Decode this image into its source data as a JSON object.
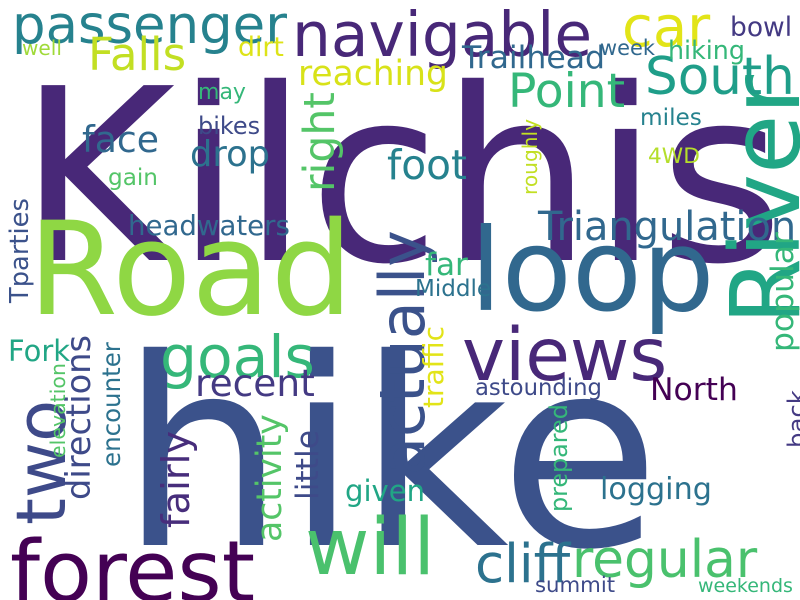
{
  "background": "#ffffff",
  "palette": {
    "dark_purple": "#440154",
    "indigo": "#482878",
    "slate_blue": "#3e4a89",
    "steel_blue": "#31688e",
    "teal_blue": "#26828e",
    "teal": "#1f9e89",
    "sea_green": "#35b779",
    "green": "#6ece58",
    "lime": "#b5de2b",
    "yellow": "#fde725"
  },
  "words": [
    {
      "text": "Kilchis",
      "color": "#482878"
    },
    {
      "text": "hike",
      "color": "#3b528b"
    },
    {
      "text": "Road",
      "color": "#8fd744"
    },
    {
      "text": "loop",
      "color": "#31688e"
    },
    {
      "text": "views",
      "color": "#482878"
    },
    {
      "text": "River",
      "color": "#21a685"
    },
    {
      "text": "forest",
      "color": "#440154"
    },
    {
      "text": "will",
      "color": "#4ac16d"
    },
    {
      "text": "regular",
      "color": "#4ac16d"
    },
    {
      "text": "actually",
      "color": "#3b528b"
    },
    {
      "text": "navigable",
      "color": "#482878"
    },
    {
      "text": "passenger",
      "color": "#26828e"
    },
    {
      "text": "South",
      "color": "#1f9e89"
    },
    {
      "text": "car",
      "color": "#e2e418"
    },
    {
      "text": "goals",
      "color": "#35b779"
    },
    {
      "text": "two",
      "color": "#3e4a89"
    },
    {
      "text": "Triangulation",
      "color": "#31688e"
    },
    {
      "text": "reaching",
      "color": "#d8e219"
    },
    {
      "text": "Falls",
      "color": "#c2df23"
    },
    {
      "text": "Point",
      "color": "#35b779"
    },
    {
      "text": "foot",
      "color": "#26828e"
    },
    {
      "text": "drop",
      "color": "#2c728e"
    },
    {
      "text": "face",
      "color": "#31688e"
    },
    {
      "text": "right",
      "color": "#54c568"
    },
    {
      "text": "directions",
      "color": "#3e4a89"
    },
    {
      "text": "recent",
      "color": "#443a83"
    },
    {
      "text": "cliff",
      "color": "#2c728e"
    },
    {
      "text": "far",
      "color": "#35b779"
    },
    {
      "text": "4WD",
      "color": "#b5de2b"
    },
    {
      "text": "North",
      "color": "#440154"
    },
    {
      "text": "logging",
      "color": "#2c728e"
    },
    {
      "text": "popular",
      "color": "#35b779"
    },
    {
      "text": "bowl",
      "color": "#443a83"
    },
    {
      "text": "headwaters",
      "color": "#31688e"
    },
    {
      "text": "Fork",
      "color": "#21a685"
    },
    {
      "text": "encounter",
      "color": "#2c728e"
    },
    {
      "text": "fairly",
      "color": "#472d7b"
    },
    {
      "text": "activity",
      "color": "#54c568"
    },
    {
      "text": "given",
      "color": "#21a685"
    },
    {
      "text": "Tparties",
      "color": "#3b528b"
    },
    {
      "text": "may",
      "color": "#35b779"
    },
    {
      "text": "week",
      "color": "#31688e"
    },
    {
      "text": "hiking",
      "color": "#35b779"
    },
    {
      "text": "Trailhead",
      "color": "#31688e"
    },
    {
      "text": "well",
      "color": "#a0da39"
    },
    {
      "text": "dirt",
      "color": "#dde318"
    },
    {
      "text": "bikes",
      "color": "#3e4a89"
    },
    {
      "text": "miles",
      "color": "#26828e"
    },
    {
      "text": "gain",
      "color": "#54c568"
    },
    {
      "text": "roughly",
      "color": "#c2df23"
    },
    {
      "text": "Middle",
      "color": "#2c728e"
    },
    {
      "text": "elevation",
      "color": "#54c568"
    },
    {
      "text": "traffic",
      "color": "#e2e418"
    },
    {
      "text": "astounding",
      "color": "#3e4a89"
    },
    {
      "text": "little",
      "color": "#3e4a89"
    },
    {
      "text": "prepared",
      "color": "#35b779"
    },
    {
      "text": "back",
      "color": "#443a83"
    },
    {
      "text": "summit",
      "color": "#3e4a89"
    },
    {
      "text": "weekends",
      "color": "#35b779"
    }
  ]
}
